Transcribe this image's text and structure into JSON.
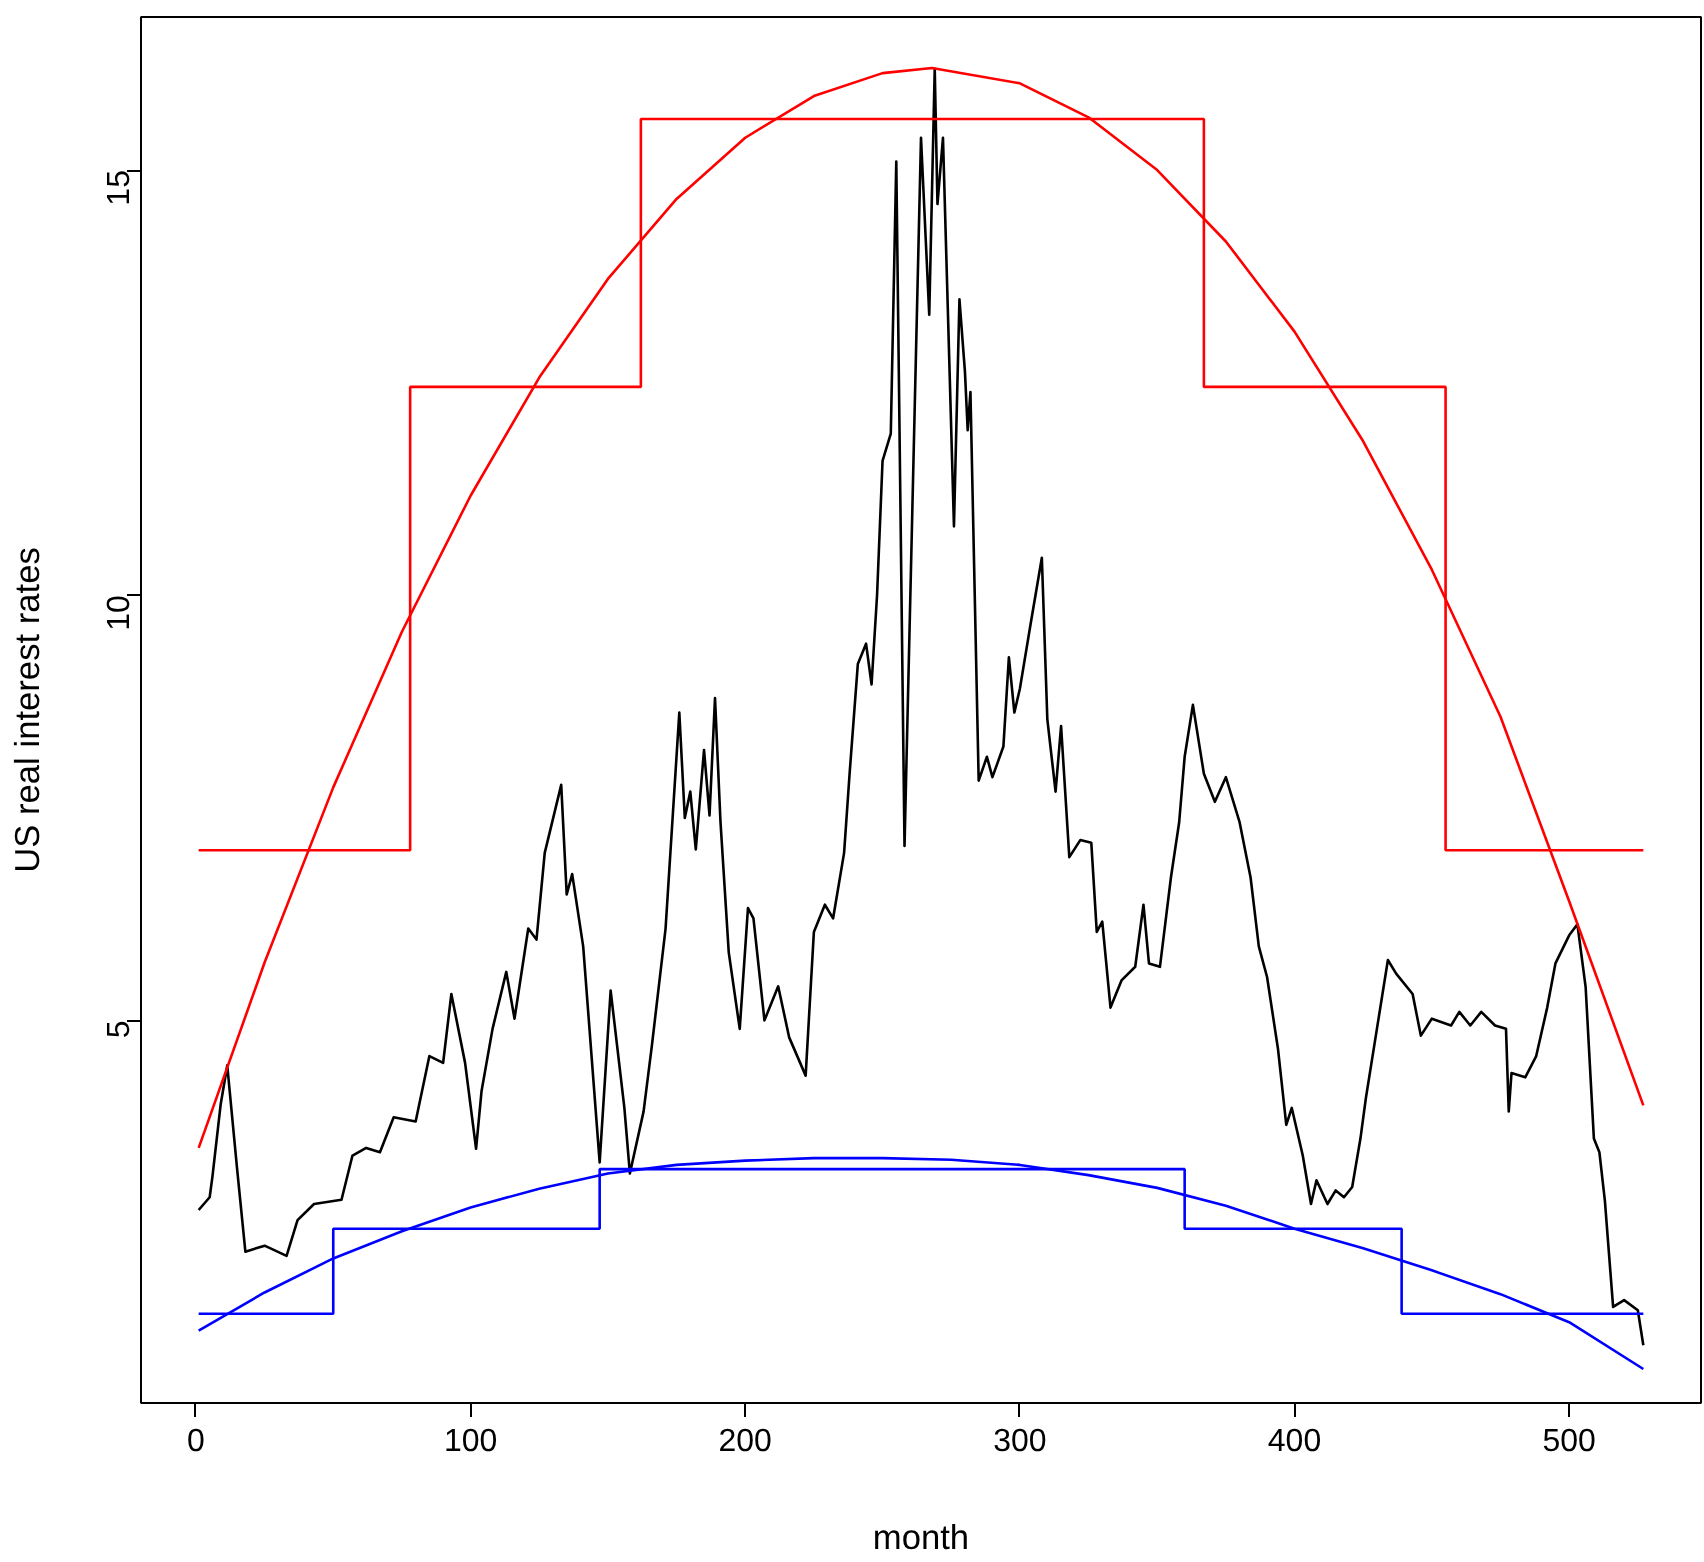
{
  "chart_data": {
    "type": "line",
    "xlabel": "month",
    "ylabel": "US real interest rates",
    "xlim": [
      -20,
      548
    ],
    "ylim": [
      0.5,
      16.8
    ],
    "xticks": [
      0,
      100,
      200,
      300,
      400,
      500
    ],
    "yticks": [
      5,
      10,
      15
    ],
    "series": [
      {
        "color": "#000000",
        "x": [
          1,
          5,
          6,
          9,
          11.4,
          15,
          18,
          25,
          33,
          37,
          43,
          53,
          57,
          62,
          67,
          72,
          80,
          85,
          90,
          93,
          98,
          102,
          104,
          108,
          113,
          116,
          121,
          124,
          127,
          133,
          135,
          137,
          141,
          147,
          151,
          156,
          158,
          163,
          166,
          171,
          176,
          178,
          180,
          182,
          185,
          187,
          189,
          191,
          194,
          198,
          201,
          203,
          207,
          212,
          216,
          222,
          225,
          229,
          232,
          236,
          238,
          241,
          244,
          246,
          248,
          250,
          253,
          255,
          258,
          264,
          267,
          269,
          270,
          272,
          276,
          278,
          280,
          281,
          282,
          285,
          288,
          290,
          294,
          296,
          298,
          300,
          304,
          308,
          310,
          313,
          315,
          318,
          322,
          326,
          328,
          330,
          333,
          337,
          342,
          345,
          347,
          351,
          355,
          358,
          360,
          363,
          367,
          371,
          375,
          380,
          384,
          387,
          390,
          394,
          397,
          399,
          403,
          406,
          408,
          412,
          415,
          418,
          421,
          424,
          426,
          430,
          434,
          437,
          443,
          446,
          450,
          457,
          460,
          464,
          468,
          473,
          477,
          478,
          479,
          484,
          488,
          492,
          495,
          500,
          503,
          506,
          509,
          511,
          513,
          516,
          520,
          525,
          527
        ],
        "values": [
          2.77,
          2.92,
          3.16,
          4.01,
          4.47,
          3.25,
          2.28,
          2.35,
          2.23,
          2.65,
          2.84,
          2.89,
          3.41,
          3.5,
          3.45,
          3.86,
          3.81,
          4.58,
          4.5,
          5.31,
          4.5,
          3.49,
          4.17,
          4.9,
          5.57,
          5.02,
          6.08,
          5.95,
          6.97,
          7.77,
          6.48,
          6.72,
          5.87,
          3.33,
          5.35,
          3.97,
          3.2,
          3.93,
          4.7,
          6.08,
          8.62,
          7.38,
          7.69,
          7.01,
          8.18,
          7.41,
          8.79,
          7.33,
          5.8,
          4.9,
          6.32,
          6.2,
          5.0,
          5.4,
          4.8,
          4.35,
          6.04,
          6.36,
          6.2,
          6.97,
          7.9,
          9.19,
          9.43,
          8.95,
          10.0,
          11.58,
          11.9,
          15.1,
          7.05,
          15.38,
          13.3,
          16.19,
          14.6,
          15.38,
          10.81,
          13.48,
          12.63,
          11.94,
          12.39,
          7.82,
          8.1,
          7.86,
          8.22,
          9.27,
          8.62,
          8.9,
          9.68,
          10.44,
          8.54,
          7.69,
          8.46,
          6.92,
          7.12,
          7.09,
          6.04,
          6.16,
          5.15,
          5.47,
          5.63,
          6.36,
          5.67,
          5.63,
          6.68,
          7.33,
          8.1,
          8.71,
          7.9,
          7.57,
          7.86,
          7.33,
          6.68,
          5.87,
          5.51,
          4.66,
          3.77,
          3.97,
          3.41,
          2.84,
          3.12,
          2.84,
          3.0,
          2.92,
          3.04,
          3.61,
          4.09,
          4.9,
          5.71,
          5.55,
          5.31,
          4.82,
          5.02,
          4.94,
          5.1,
          4.94,
          5.1,
          4.94,
          4.9,
          3.93,
          4.38,
          4.33,
          4.58,
          5.15,
          5.67,
          6.0,
          6.13,
          5.39,
          3.61,
          3.45,
          2.88,
          1.63,
          1.71,
          1.59,
          1.18
        ]
      },
      {
        "type": "step",
        "color": "#ff0000",
        "x": [
          1,
          78,
          162,
          367,
          455,
          527
        ],
        "values": [
          7.0,
          12.45,
          15.6,
          12.45,
          7.0,
          7.0
        ]
      },
      {
        "type": "line",
        "color": "#ff0000",
        "x": [
          1,
          25,
          50,
          75,
          100,
          125,
          150,
          175,
          200,
          225,
          250,
          268,
          300,
          325,
          350,
          375,
          400,
          425,
          450,
          475,
          500,
          527
        ],
        "values": [
          3.5,
          5.68,
          7.74,
          9.57,
          11.17,
          12.56,
          13.72,
          14.66,
          15.38,
          15.87,
          16.14,
          16.2,
          16.02,
          15.62,
          15.0,
          14.16,
          13.1,
          11.81,
          10.3,
          8.57,
          6.4,
          4.0
        ]
      },
      {
        "type": "step",
        "color": "#0000ff",
        "x": [
          1,
          50,
          147,
          360,
          439,
          527
        ],
        "values": [
          1.55,
          2.55,
          3.25,
          2.55,
          1.55,
          1.55
        ]
      },
      {
        "type": "line",
        "color": "#0000ff",
        "x": [
          1,
          25,
          50,
          75,
          100,
          125,
          150,
          175,
          200,
          225,
          250,
          275,
          300,
          325,
          350,
          375,
          400,
          425,
          450,
          475,
          500,
          527
        ],
        "values": [
          1.35,
          1.8,
          2.2,
          2.52,
          2.8,
          3.02,
          3.2,
          3.3,
          3.35,
          3.38,
          3.38,
          3.36,
          3.3,
          3.18,
          3.03,
          2.82,
          2.55,
          2.32,
          2.06,
          1.78,
          1.45,
          0.9
        ]
      }
    ]
  }
}
